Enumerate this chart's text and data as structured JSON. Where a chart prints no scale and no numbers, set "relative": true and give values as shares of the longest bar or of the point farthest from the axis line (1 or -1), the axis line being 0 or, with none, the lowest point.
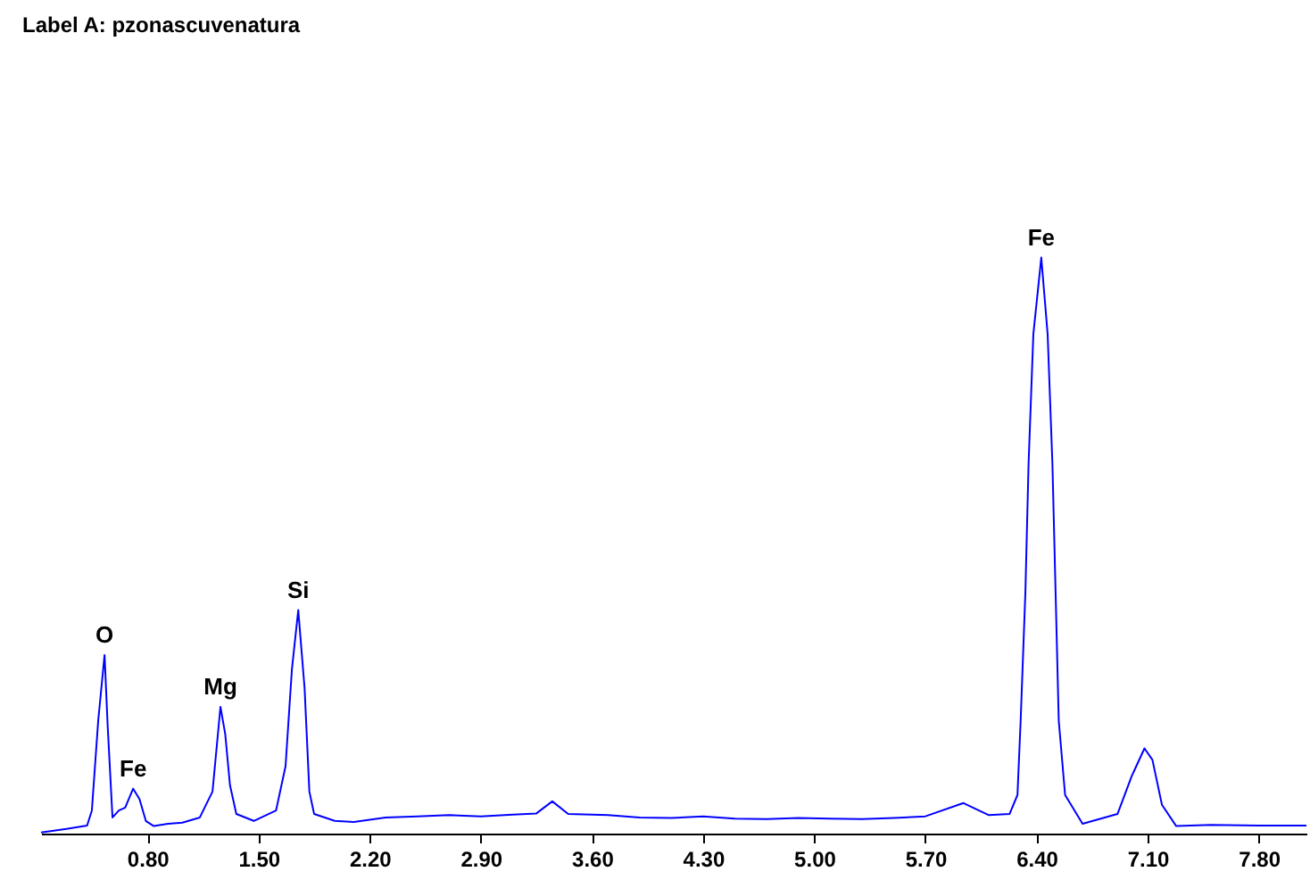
{
  "chart_data": {
    "type": "line",
    "title": "Label A: pzonascuvenatura",
    "relative": true,
    "tick_labels": "x",
    "grid": false,
    "marker": "none",
    "line_style": "solid",
    "x": [
      0.13,
      0.29,
      0.42,
      0.45,
      0.49,
      0.53,
      0.55,
      0.58,
      0.62,
      0.66,
      0.71,
      0.75,
      0.79,
      0.84,
      0.93,
      1.02,
      1.13,
      1.21,
      1.26,
      1.29,
      1.32,
      1.36,
      1.47,
      1.61,
      1.67,
      1.71,
      1.75,
      1.79,
      1.82,
      1.85,
      1.98,
      2.1,
      2.3,
      2.5,
      2.7,
      2.9,
      3.1,
      3.25,
      3.35,
      3.45,
      3.7,
      3.9,
      4.1,
      4.3,
      4.5,
      4.7,
      4.9,
      5.1,
      5.3,
      5.5,
      5.7,
      5.94,
      6.1,
      6.23,
      6.28,
      6.3,
      6.33,
      6.35,
      6.38,
      6.43,
      6.47,
      6.5,
      6.52,
      6.54,
      6.58,
      6.69,
      6.91,
      7.0,
      7.08,
      7.13,
      7.19,
      7.28,
      7.5,
      7.8,
      8.1
    ],
    "xlim": [
      0.13,
      8.1
    ],
    "xticks": [
      {
        "value": 0.8,
        "label": "0.80"
      },
      {
        "value": 1.5,
        "label": "1.50"
      },
      {
        "value": 2.2,
        "label": "2.20"
      },
      {
        "value": 2.9,
        "label": "2.90"
      },
      {
        "value": 3.6,
        "label": "3.60"
      },
      {
        "value": 4.3,
        "label": "4.30"
      },
      {
        "value": 5.0,
        "label": "5.00"
      },
      {
        "value": 5.7,
        "label": "5.70"
      },
      {
        "value": 6.4,
        "label": "6.40"
      },
      {
        "value": 7.1,
        "label": "7.10"
      },
      {
        "value": 7.8,
        "label": "7.80"
      }
    ],
    "series": [
      {
        "color": "#0000ff",
        "values": [
          0.002,
          0.008,
          0.014,
          0.04,
          0.196,
          0.31,
          0.185,
          0.028,
          0.04,
          0.045,
          0.078,
          0.06,
          0.022,
          0.013,
          0.017,
          0.019,
          0.028,
          0.073,
          0.22,
          0.173,
          0.084,
          0.034,
          0.022,
          0.04,
          0.117,
          0.285,
          0.388,
          0.252,
          0.073,
          0.034,
          0.022,
          0.02,
          0.028,
          0.03,
          0.032,
          0.03,
          0.033,
          0.035,
          0.056,
          0.034,
          0.032,
          0.028,
          0.027,
          0.03,
          0.026,
          0.025,
          0.027,
          0.026,
          0.025,
          0.027,
          0.03,
          0.053,
          0.032,
          0.034,
          0.067,
          0.196,
          0.42,
          0.643,
          0.867,
          1,
          0.867,
          0.643,
          0.42,
          0.196,
          0.067,
          0.017,
          0.034,
          0.1,
          0.148,
          0.128,
          0.05,
          0.013,
          0.015,
          0.014,
          0.014
        ]
      }
    ],
    "annotations": [
      {
        "text": "O",
        "x": 0.53,
        "y": 0.31
      },
      {
        "text": "Fe",
        "x": 0.71,
        "y": 0.078
      },
      {
        "text": "Mg",
        "x": 1.26,
        "y": 0.22
      },
      {
        "text": "Si",
        "x": 1.75,
        "y": 0.388
      },
      {
        "text": "Fe",
        "x": 6.43,
        "y": 1
      }
    ]
  }
}
